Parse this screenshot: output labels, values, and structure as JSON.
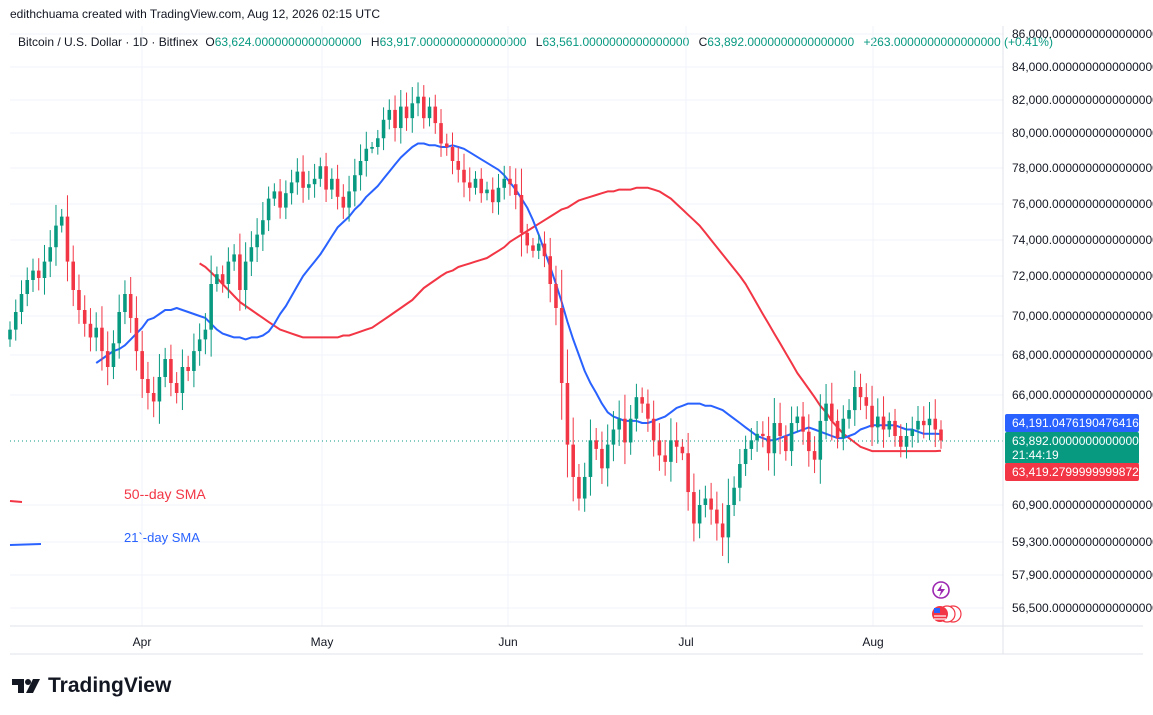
{
  "header": {
    "attribution": "edithchuama created with TradingView.com, Aug 12, 2026 02:15 UTC"
  },
  "legend": {
    "symbol": "Bitcoin / U.S. Dollar · 1D · Bitfinex",
    "o_label": "O",
    "o_value": "63,624.0000000000000000",
    "h_label": "H",
    "h_value": "63,917.0000000000000000",
    "l_label": "L",
    "l_value": "63,561.0000000000000000",
    "c_label": "C",
    "c_value": "63,892.0000000000000000",
    "change": "+263.0000000000000000 (+0.41%)"
  },
  "annotations": {
    "sma50": "50--day SMA",
    "sma21": "21`-day SMA"
  },
  "price_tags": {
    "sma21_value": "64,191.0476190476416",
    "last_price": "63,892.0000000000000000",
    "countdown": "21:44:19",
    "sma50_value": "63,419.2799999999872"
  },
  "branding": {
    "logo_text": "TradingView",
    "logo_icon": "tradingview-logo-icon"
  },
  "colors": {
    "up": "#089981",
    "down": "#f23645",
    "sma21": "#2962ff",
    "sma50": "#f23645"
  },
  "chart_data": {
    "type": "candlestick",
    "symbol": "BTCUSD",
    "timeframe": "1D",
    "y_axis": {
      "ticks": [
        {
          "value": 86000,
          "label": "86,000.0000000000000000"
        },
        {
          "value": 84000,
          "label": "84,000.0000000000000000"
        },
        {
          "value": 82000,
          "label": "82,000.0000000000000000"
        },
        {
          "value": 80000,
          "label": "80,000.0000000000000000"
        },
        {
          "value": 78000,
          "label": "78,000.0000000000000000"
        },
        {
          "value": 76000,
          "label": "76,000.0000000000000000"
        },
        {
          "value": 74000,
          "label": "74,000.0000000000000000"
        },
        {
          "value": 72000,
          "label": "72,000.0000000000000000"
        },
        {
          "value": 70000,
          "label": "70,000.0000000000000000"
        },
        {
          "value": 68000,
          "label": "68,000.0000000000000000"
        },
        {
          "value": 66000,
          "label": "66,000.0000000000000000"
        },
        {
          "value": 60900,
          "label": "60,900.0000000000000000"
        },
        {
          "value": 59300,
          "label": "59,300.0000000000000000"
        },
        {
          "value": 57900,
          "label": "57,900.0000000000000000"
        },
        {
          "value": 56500,
          "label": "56,500.0000000000000000"
        }
      ]
    },
    "x_axis": {
      "ticks": [
        {
          "date": "2026-04-01",
          "label": "Apr"
        },
        {
          "date": "2026-05-01",
          "label": "May"
        },
        {
          "date": "2026-06-01",
          "label": "Jun"
        },
        {
          "date": "2026-07-01",
          "label": "Jul"
        },
        {
          "date": "2026-08-01",
          "label": "Aug"
        }
      ]
    },
    "last_price": 63892,
    "close": [
      69300,
      70200,
      71100,
      71800,
      72300,
      71900,
      72800,
      73600,
      74800,
      75300,
      72800,
      71300,
      70300,
      69600,
      68900,
      69400,
      68200,
      67400,
      68600,
      70200,
      71100,
      69900,
      68200,
      66800,
      66100,
      65700,
      66900,
      67800,
      66600,
      66100,
      67400,
      67200,
      68200,
      68800,
      69300,
      71600,
      72100,
      71600,
      72800,
      73200,
      71300,
      72800,
      73600,
      74300,
      75100,
      76300,
      76700,
      75800,
      76600,
      77200,
      77800,
      76900,
      77100,
      77400,
      78100,
      76800,
      77400,
      76400,
      75800,
      76700,
      77600,
      78400,
      79100,
      79200,
      79700,
      80800,
      81400,
      80300,
      81600,
      80900,
      81800,
      82200,
      80900,
      81600,
      80600,
      79400,
      79200,
      78400,
      77900,
      77200,
      76900,
      77400,
      76600,
      76800,
      76100,
      76900,
      77400,
      77100,
      76500,
      74400,
      73700,
      73400,
      73800,
      73100,
      71600,
      70400,
      66600,
      63700,
      62200,
      61200,
      62200,
      63900,
      63500,
      62600,
      63700,
      64400,
      64900,
      63800,
      64900,
      65900,
      65600,
      64900,
      63900,
      63200,
      62900,
      63900,
      63600,
      63300,
      61500,
      60100,
      60900,
      61200,
      60700,
      60100,
      59500,
      60900,
      61700,
      62800,
      63500,
      63900,
      64200,
      64100,
      63300,
      64700,
      64100,
      63400,
      64700,
      65000,
      64300,
      63400,
      63000,
      64800,
      65600,
      64800,
      64000,
      64900,
      65300,
      66400,
      65900,
      65500,
      64500,
      65000,
      64400,
      64800,
      64100,
      63600,
      64100,
      64400,
      64800,
      64600,
      64900,
      64400,
      63892
    ],
    "sma21": [
      67600,
      67800,
      68000,
      68200,
      68300,
      68500,
      68800,
      69100,
      69400,
      69800,
      69900,
      70100,
      70300,
      70300,
      70400,
      70300,
      70200,
      70100,
      70000,
      69900,
      69600,
      69300,
      69100,
      69000,
      68900,
      68900,
      68800,
      68900,
      68900,
      69000,
      69200,
      69600,
      70100,
      70500,
      71000,
      71500,
      72000,
      72400,
      72800,
      73200,
      73700,
      74200,
      74700,
      75000,
      75300,
      75700,
      76000,
      76400,
      76700,
      77000,
      77400,
      77800,
      78200,
      78600,
      78900,
      79200,
      79400,
      79400,
      79300,
      79300,
      79200,
      79200,
      79300,
      79200,
      79100,
      78900,
      78700,
      78500,
      78300,
      78100,
      77900,
      77600,
      77200,
      76800,
      76300,
      75800,
      75100,
      74300,
      73400,
      72500,
      71600,
      70700,
      69700,
      68800,
      68000,
      67200,
      66600,
      66100,
      65600,
      65200,
      65000,
      64900,
      64800,
      64800,
      64800,
      64700,
      64700,
      64800,
      64900,
      65000,
      65200,
      65400,
      65500,
      65600,
      65600,
      65600,
      65500,
      65500,
      65400,
      65300,
      65100,
      64900,
      64700,
      64500,
      64300,
      64100,
      64000,
      63900,
      63900,
      64000,
      64100,
      64200,
      64300,
      64400,
      64500,
      64400,
      64300,
      64200,
      64100,
      64000,
      64000,
      64100,
      64200,
      64400,
      64500,
      64600,
      64600,
      64600,
      64600,
      64600,
      64500,
      64400,
      64400,
      64300,
      64200,
      64200,
      64200,
      64191
    ],
    "sma50": [
      72700,
      72500,
      72200,
      71900,
      71600,
      71300,
      71000,
      70700,
      70500,
      70300,
      70100,
      69900,
      69700,
      69500,
      69300,
      69200,
      69100,
      69000,
      68900,
      68900,
      68900,
      68900,
      68900,
      68900,
      68900,
      69000,
      69000,
      69100,
      69200,
      69300,
      69400,
      69600,
      69800,
      70000,
      70200,
      70400,
      70600,
      70800,
      71100,
      71400,
      71600,
      71800,
      72000,
      72200,
      72300,
      72500,
      72600,
      72700,
      72800,
      72900,
      73000,
      73200,
      73400,
      73600,
      73900,
      74100,
      74300,
      74500,
      74700,
      74900,
      75100,
      75300,
      75500,
      75700,
      75800,
      76000,
      76200,
      76300,
      76400,
      76500,
      76600,
      76700,
      76700,
      76800,
      76800,
      76800,
      76900,
      76900,
      76900,
      76800,
      76700,
      76500,
      76300,
      76000,
      75700,
      75400,
      75100,
      74800,
      74400,
      74000,
      73600,
      73200,
      72800,
      72400,
      72000,
      71600,
      71100,
      70600,
      70100,
      69600,
      69100,
      68600,
      68100,
      67600,
      67100,
      66700,
      66300,
      65900,
      65500,
      65200,
      64800,
      64500,
      64200,
      64000,
      63800,
      63600,
      63500,
      63400,
      63400,
      63400,
      63400,
      63400,
      63400,
      63400,
      63400,
      63400,
      63400,
      63400,
      63400,
      63419
    ]
  }
}
